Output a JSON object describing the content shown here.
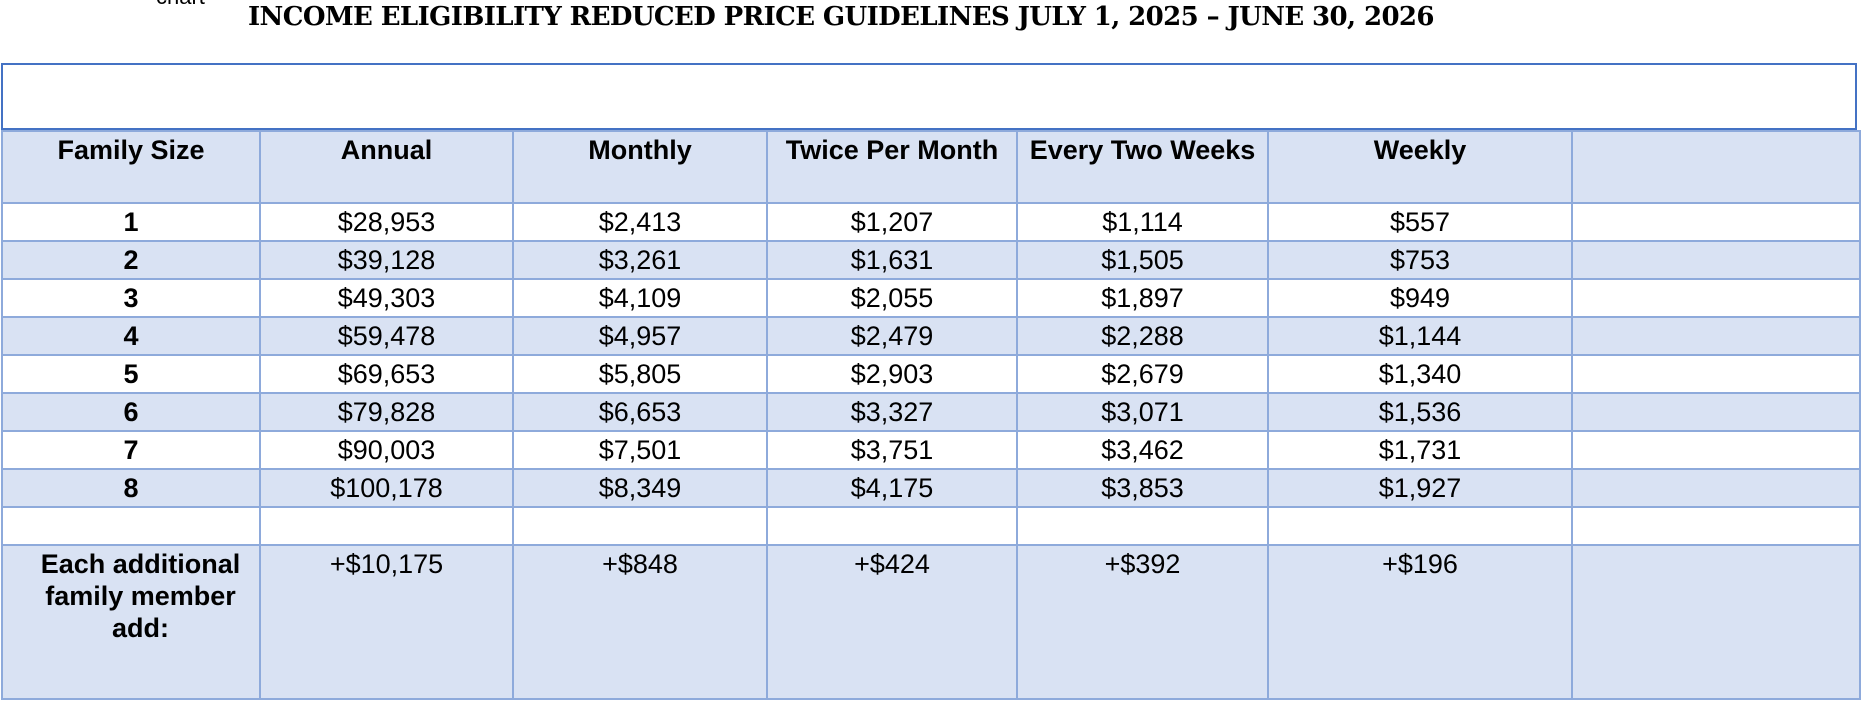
{
  "clipped_text": "chart",
  "title": "INCOME ELIGIBILITY REDUCED PRICE GUIDELINES JULY 1, 2025 – JUNE 30, 2026",
  "table": {
    "headers": [
      "Family Size",
      "Annual",
      "Monthly",
      "Twice Per Month",
      "Every Two Weeks",
      "Weekly",
      ""
    ],
    "rows": [
      {
        "size": "1",
        "annual": "$28,953",
        "monthly": "$2,413",
        "twice": "$1,207",
        "biweekly": "$1,114",
        "weekly": "$557"
      },
      {
        "size": "2",
        "annual": "$39,128",
        "monthly": "$3,261",
        "twice": "$1,631",
        "biweekly": "$1,505",
        "weekly": "$753"
      },
      {
        "size": "3",
        "annual": "$49,303",
        "monthly": "$4,109",
        "twice": "$2,055",
        "biweekly": "$1,897",
        "weekly": "$949"
      },
      {
        "size": "4",
        "annual": "$59,478",
        "monthly": "$4,957",
        "twice": "$2,479",
        "biweekly": "$2,288",
        "weekly": "$1,144"
      },
      {
        "size": "5",
        "annual": "$69,653",
        "monthly": "$5,805",
        "twice": "$2,903",
        "biweekly": "$2,679",
        "weekly": "$1,340"
      },
      {
        "size": "6",
        "annual": "$79,828",
        "monthly": "$6,653",
        "twice": "$3,327",
        "biweekly": "$3,071",
        "weekly": "$1,536"
      },
      {
        "size": "7",
        "annual": "$90,003",
        "monthly": "$7,501",
        "twice": "$3,751",
        "biweekly": "$3,462",
        "weekly": "$1,731"
      },
      {
        "size": "8",
        "annual": "$100,178",
        "monthly": "$8,349",
        "twice": "$4,175",
        "biweekly": "$3,853",
        "weekly": "$1,927"
      }
    ],
    "additional": {
      "label": "Each additional family member add:",
      "annual": "+$10,175",
      "monthly": "+$848",
      "twice": "+$424",
      "biweekly": "+$392",
      "weekly": "+$196"
    }
  },
  "colors": {
    "row_shade": "#d9e2f3",
    "grid_line": "#8eaadb",
    "outer_border": "#4472c4"
  }
}
